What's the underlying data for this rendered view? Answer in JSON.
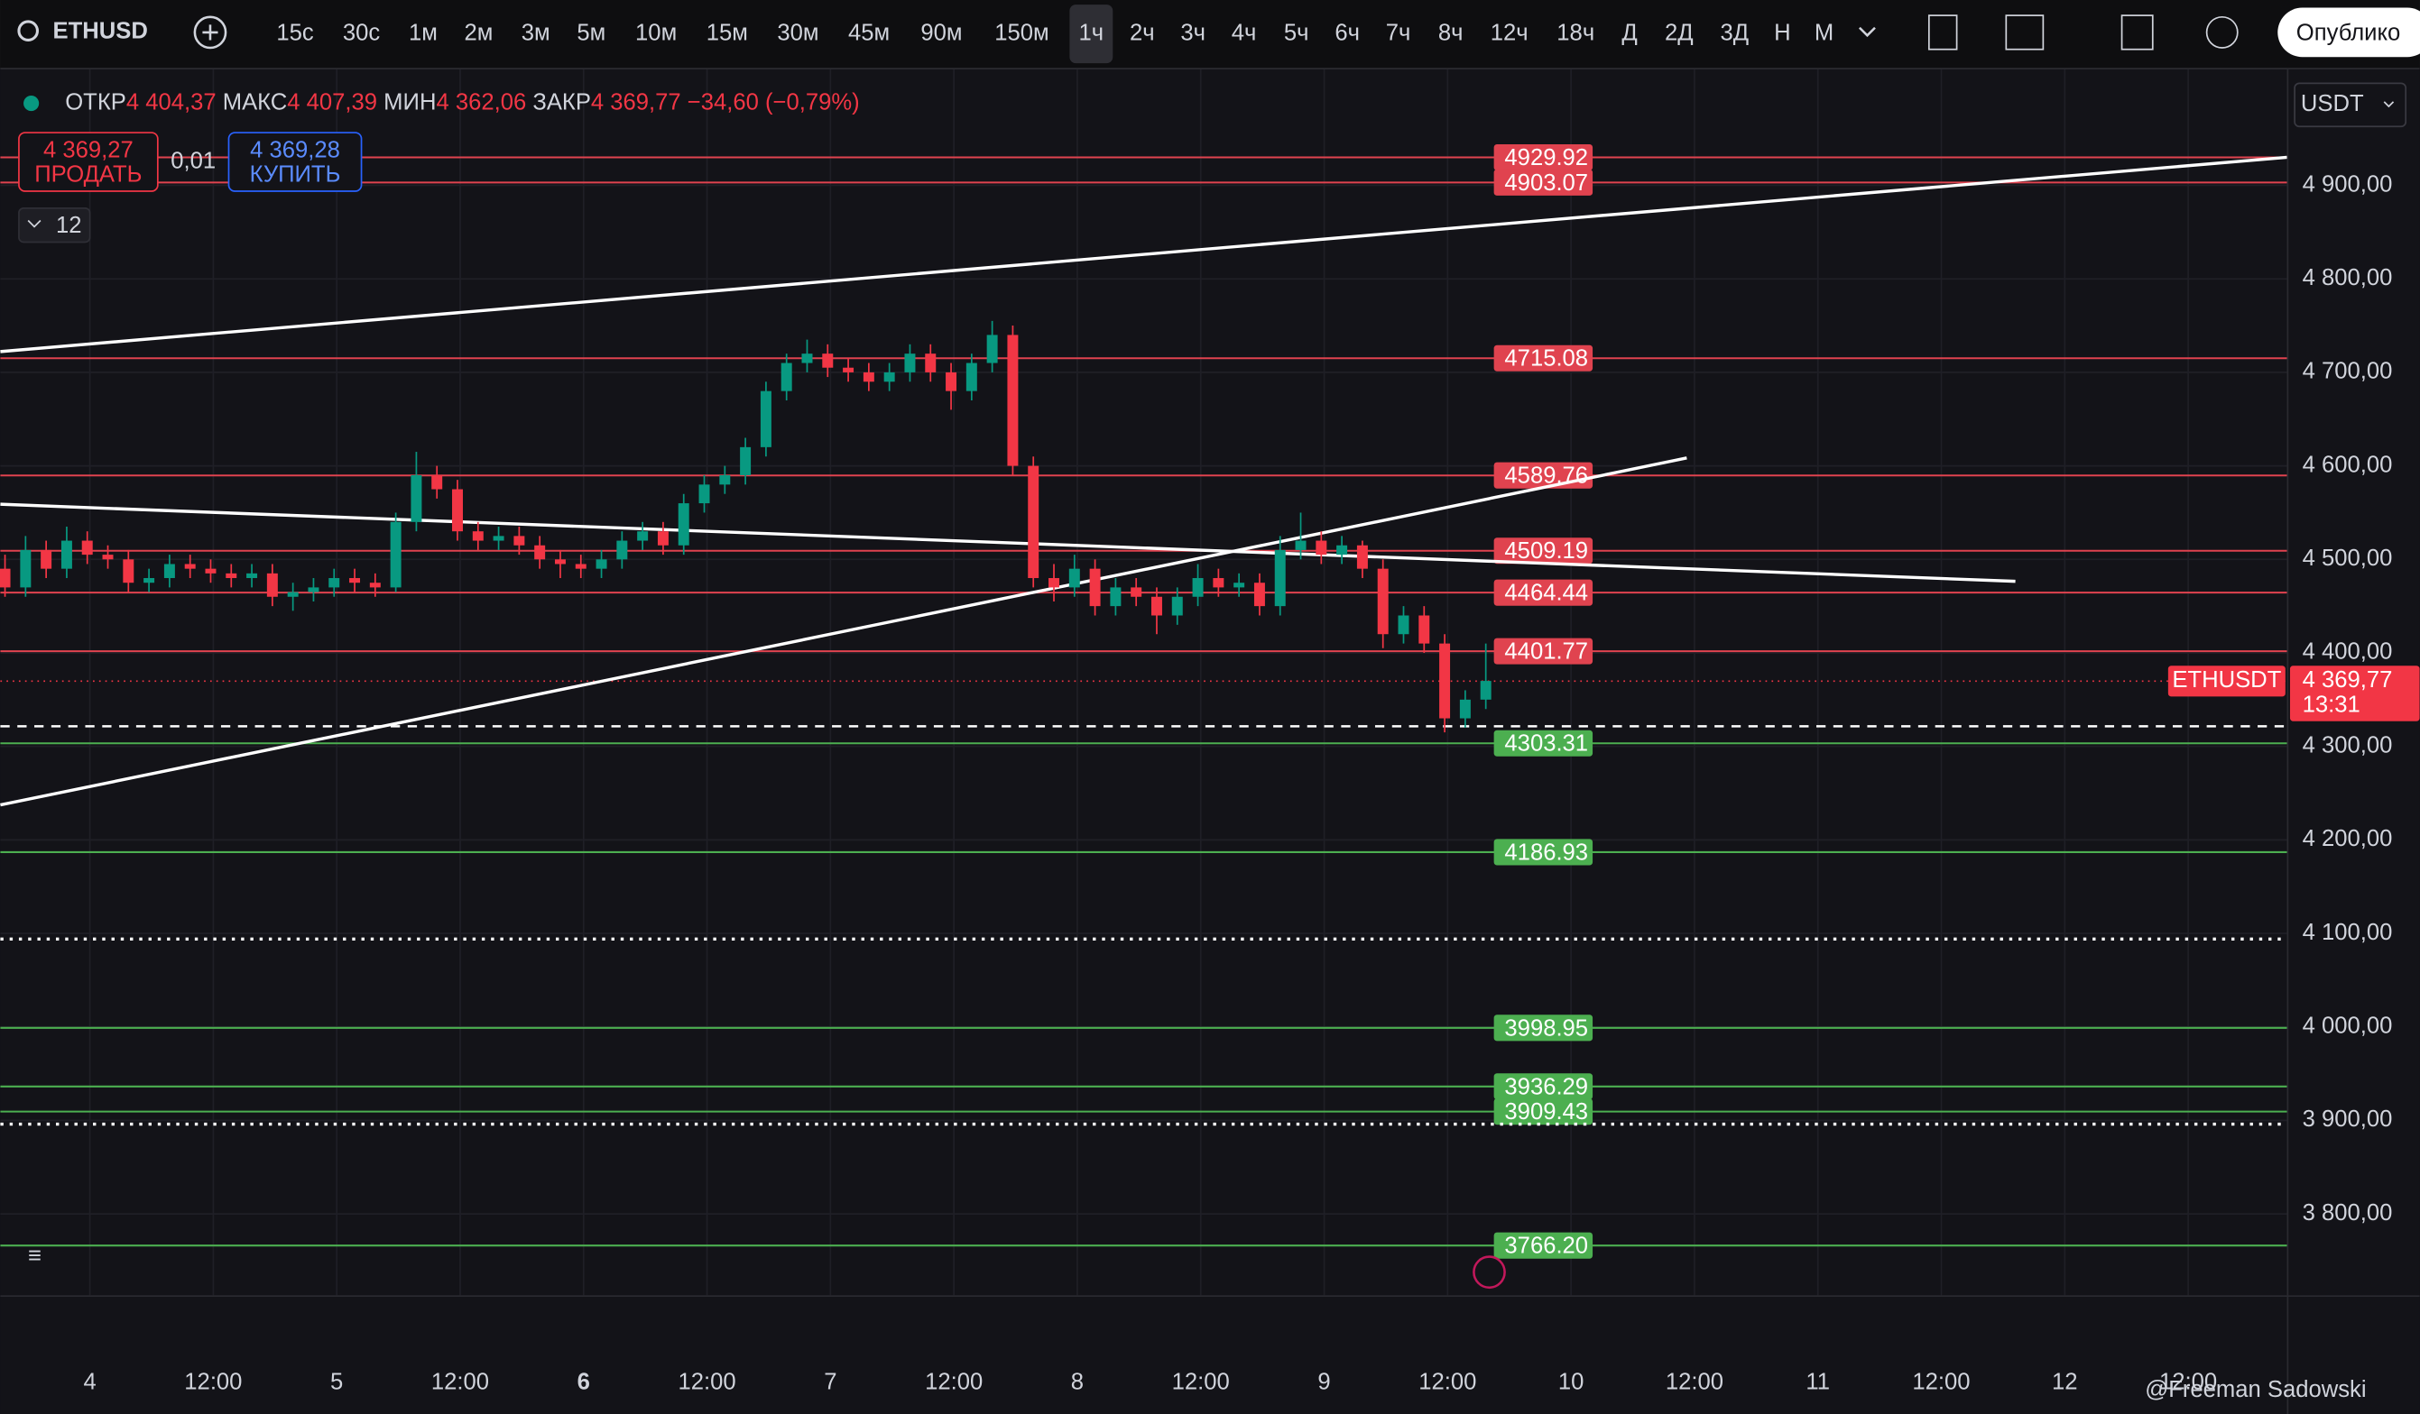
{
  "toolbar": {
    "symbol": "ETHUSD",
    "intervals": [
      "15с",
      "30с",
      "1м",
      "2м",
      "3м",
      "5м",
      "10м",
      "15м",
      "30м",
      "45м",
      "90м",
      "150м",
      "1ч",
      "2ч",
      "3ч",
      "4ч",
      "5ч",
      "6ч",
      "7ч",
      "8ч",
      "12ч",
      "18ч",
      "Д",
      "2Д",
      "3Д",
      "Н",
      "М"
    ],
    "active_index": 12,
    "publish": "Опублико"
  },
  "legend": {
    "open_label": "ОТКР",
    "open": "4 404,37",
    "high_label": "МАКС",
    "high": "4 407,39",
    "low_label": "МИН",
    "low": "4 362,06",
    "close_label": "ЗАКР",
    "close": "4 369,77",
    "change": "−34,60 (−0,79%)"
  },
  "trade": {
    "sell_price": "4 369,27",
    "sell": "ПРОДАТЬ",
    "spread": "0,01",
    "buy_price": "4 369,28",
    "buy": "КУПИТЬ"
  },
  "indicators_count": "12",
  "currency": "USDT",
  "watermark": "@Freeman Sadowski",
  "chart_data": {
    "type": "candlestick",
    "ylim": [
      3713,
      5024
    ],
    "yticks": [
      {
        "value": 3800,
        "label": "3 800,00"
      },
      {
        "value": 3900,
        "label": "3 900,00"
      },
      {
        "value": 4000,
        "label": "4 000,00"
      },
      {
        "value": 4100,
        "label": "4 100,00"
      },
      {
        "value": 4200,
        "label": "4 200,00"
      },
      {
        "value": 4300,
        "label": "4 300,00"
      },
      {
        "value": 4400,
        "label": "4 400,00"
      },
      {
        "value": 4500,
        "label": "4 500,00"
      },
      {
        "value": 4600,
        "label": "4 600,00"
      },
      {
        "value": 4700,
        "label": "4 700,00"
      },
      {
        "value": 4800,
        "label": "4 800,00"
      },
      {
        "value": 4900,
        "label": "4 900,00"
      }
    ],
    "x_labels": [
      "4",
      "12:00",
      "5",
      "12:00",
      "6",
      "12:00",
      "7",
      "12:00",
      "8",
      "12:00",
      "9",
      "12:00",
      "10",
      "12:00",
      "11",
      "12:00",
      "12",
      "12:00"
    ],
    "resistance": [
      4929.92,
      4903.07,
      4715.08,
      4589.76,
      4509.19,
      4464.44,
      4401.77
    ],
    "support": [
      4303.31,
      4186.93,
      3998.95,
      3936.29,
      3909.43,
      {
        "value": 3766.2,
        "label": "3766.20"
      }
    ],
    "price_tag": {
      "symbol": "ETHUSDT",
      "value": 4369.77,
      "label": "4 369,77",
      "countdown": "13:31"
    },
    "candles": [
      [
        4490,
        4505,
        4460,
        4470
      ],
      [
        4470,
        4525,
        4460,
        4510
      ],
      [
        4510,
        4520,
        4480,
        4490
      ],
      [
        4490,
        4535,
        4480,
        4520
      ],
      [
        4520,
        4530,
        4495,
        4505
      ],
      [
        4505,
        4515,
        4490,
        4500
      ],
      [
        4500,
        4510,
        4465,
        4475
      ],
      [
        4475,
        4490,
        4465,
        4480
      ],
      [
        4480,
        4505,
        4470,
        4495
      ],
      [
        4495,
        4505,
        4480,
        4490
      ],
      [
        4490,
        4500,
        4475,
        4485
      ],
      [
        4485,
        4495,
        4470,
        4480
      ],
      [
        4480,
        4495,
        4470,
        4485
      ],
      [
        4485,
        4495,
        4450,
        4460
      ],
      [
        4460,
        4475,
        4445,
        4465
      ],
      [
        4465,
        4480,
        4455,
        4470
      ],
      [
        4470,
        4490,
        4460,
        4480
      ],
      [
        4480,
        4490,
        4465,
        4475
      ],
      [
        4475,
        4485,
        4460,
        4470
      ],
      [
        4470,
        4550,
        4465,
        4540
      ],
      [
        4540,
        4615,
        4530,
        4590
      ],
      [
        4590,
        4600,
        4565,
        4575
      ],
      [
        4575,
        4585,
        4520,
        4530
      ],
      [
        4530,
        4540,
        4510,
        4520
      ],
      [
        4520,
        4535,
        4510,
        4525
      ],
      [
        4525,
        4535,
        4505,
        4515
      ],
      [
        4515,
        4525,
        4490,
        4500
      ],
      [
        4500,
        4510,
        4480,
        4495
      ],
      [
        4495,
        4505,
        4480,
        4490
      ],
      [
        4490,
        4510,
        4480,
        4500
      ],
      [
        4500,
        4530,
        4490,
        4520
      ],
      [
        4520,
        4540,
        4510,
        4530
      ],
      [
        4530,
        4540,
        4505,
        4515
      ],
      [
        4515,
        4570,
        4505,
        4560
      ],
      [
        4560,
        4590,
        4550,
        4580
      ],
      [
        4580,
        4600,
        4570,
        4590
      ],
      [
        4590,
        4630,
        4580,
        4620
      ],
      [
        4620,
        4690,
        4610,
        4680
      ],
      [
        4680,
        4720,
        4670,
        4710
      ],
      [
        4710,
        4735,
        4700,
        4720
      ],
      [
        4720,
        4730,
        4695,
        4705
      ],
      [
        4705,
        4715,
        4690,
        4700
      ],
      [
        4700,
        4710,
        4680,
        4690
      ],
      [
        4690,
        4710,
        4680,
        4700
      ],
      [
        4700,
        4730,
        4690,
        4720
      ],
      [
        4720,
        4730,
        4690,
        4700
      ],
      [
        4700,
        4710,
        4660,
        4680
      ],
      [
        4680,
        4720,
        4670,
        4710
      ],
      [
        4710,
        4755,
        4700,
        4740
      ],
      [
        4740,
        4750,
        4590,
        4600
      ],
      [
        4600,
        4610,
        4470,
        4480
      ],
      [
        4480,
        4495,
        4455,
        4470
      ],
      [
        4470,
        4505,
        4460,
        4490
      ],
      [
        4490,
        4500,
        4440,
        4450
      ],
      [
        4450,
        4480,
        4440,
        4470
      ],
      [
        4470,
        4480,
        4450,
        4460
      ],
      [
        4460,
        4470,
        4420,
        4440
      ],
      [
        4440,
        4470,
        4430,
        4460
      ],
      [
        4460,
        4495,
        4450,
        4480
      ],
      [
        4480,
        4490,
        4460,
        4470
      ],
      [
        4470,
        4485,
        4460,
        4475
      ],
      [
        4475,
        4485,
        4440,
        4450
      ],
      [
        4450,
        4525,
        4440,
        4510
      ],
      [
        4510,
        4550,
        4500,
        4520
      ],
      [
        4520,
        4530,
        4495,
        4505
      ],
      [
        4505,
        4525,
        4495,
        4515
      ],
      [
        4515,
        4520,
        4480,
        4490
      ],
      [
        4490,
        4500,
        4405,
        4420
      ],
      [
        4420,
        4450,
        4410,
        4440
      ],
      [
        4440,
        4450,
        4400,
        4410
      ],
      [
        4410,
        4420,
        4315,
        4330
      ],
      [
        4330,
        4360,
        4320,
        4350
      ],
      [
        4350,
        4410,
        4340,
        4370
      ]
    ],
    "up_color": "#089981",
    "down_color": "#f23645",
    "resistance_color": "#e0434f",
    "support_color": "#4caf50"
  }
}
